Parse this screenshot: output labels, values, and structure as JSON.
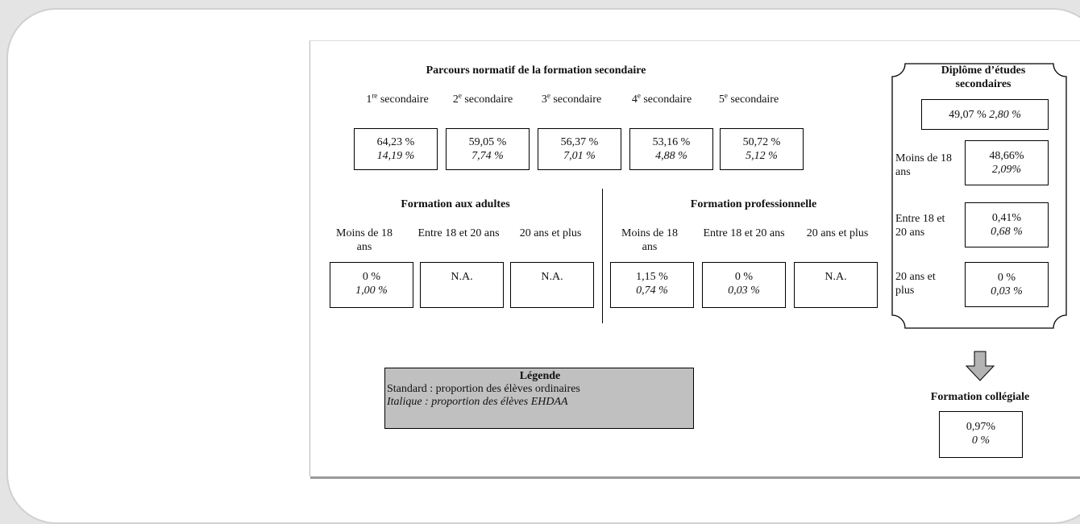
{
  "figure": {
    "secondary": {
      "title": "Parcours normatif de la formation secondaire",
      "levels": [
        {
          "num": "1",
          "sup": "re",
          "label": "secondaire",
          "value": "64,23  %",
          "ehdaa": "14,19  %"
        },
        {
          "num": "2",
          "sup": "e",
          "label": "secondaire",
          "value": "59,05 %",
          "ehdaa": "7,74  %"
        },
        {
          "num": "3",
          "sup": "e",
          "label": "secondaire",
          "value": "56,37 %",
          "ehdaa": "7,01 %"
        },
        {
          "num": "4",
          "sup": "e",
          "label": "secondaire",
          "value": "53,16 %",
          "ehdaa": "4,88  %"
        },
        {
          "num": "5",
          "sup": "e",
          "label": "secondaire",
          "value": "50,72 %",
          "ehdaa": "5,12 %"
        }
      ]
    },
    "adults": {
      "title": "Formation aux adultes",
      "groups": [
        {
          "label": "Moins de 18 ans",
          "value": "0 %",
          "ehdaa": "1,00 %"
        },
        {
          "label": "Entre 18 et 20 ans",
          "value": "N.A.",
          "ehdaa": ""
        },
        {
          "label": "20 ans et plus",
          "value": "N.A.",
          "ehdaa": ""
        }
      ]
    },
    "professional": {
      "title": "Formation professionnelle",
      "groups": [
        {
          "label": "Moins de 18 ans",
          "value": "1,15 %",
          "ehdaa": "0,74 %"
        },
        {
          "label": "Entre 18 et 20 ans",
          "value": "0 %",
          "ehdaa": "0,03 %"
        },
        {
          "label": "20 ans et plus",
          "value": "N.A.",
          "ehdaa": ""
        }
      ]
    },
    "diploma": {
      "title": "Diplôme d’études secondaires",
      "total_value": "49,07 %",
      "total_ehdaa": "2,80 %",
      "groups": [
        {
          "label": "Moins de 18 ans",
          "value": "48,66%",
          "ehdaa": "2,09%"
        },
        {
          "label": "Entre 18 et 20 ans",
          "value": "0,41%",
          "ehdaa": "0,68 %"
        },
        {
          "label": "20 ans et plus",
          "value": "0 %",
          "ehdaa": "0,03 %"
        }
      ]
    },
    "college": {
      "title": "Formation collégiale",
      "value": "0,97%",
      "ehdaa": "0 %"
    },
    "legend": {
      "title": "Légende",
      "standard": "Standard : proportion des élèves ordinaires",
      "italic": "Italique : proportion des élèves EHDAA"
    },
    "colors": {
      "legend_bg": "#c0c0c0",
      "arrow_fill": "#b3b3b3"
    }
  }
}
